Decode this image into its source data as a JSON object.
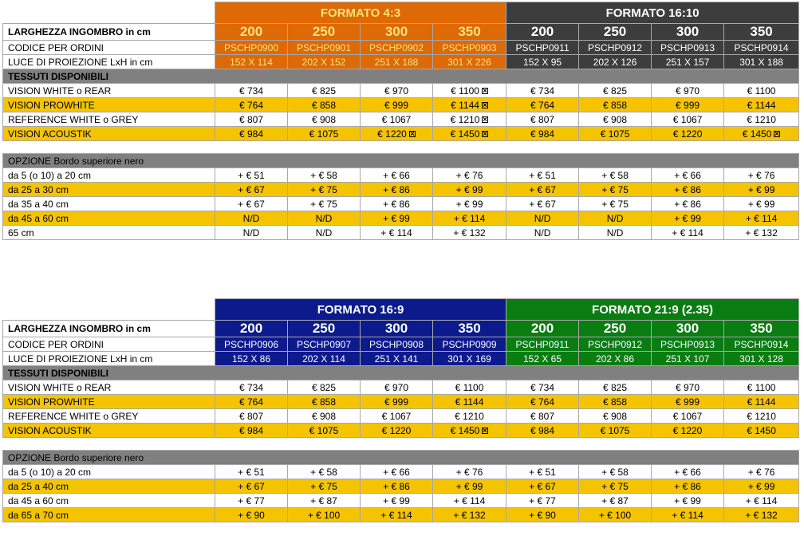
{
  "tables": [
    {
      "formats": [
        {
          "label": "FORMATO 4:3",
          "color": "#dd6a06",
          "sizes": [
            "200",
            "250",
            "300",
            "350"
          ],
          "codes": [
            "PSCHP0900",
            "PSCHP0901",
            "PSCHP0902",
            "PSCHP0903"
          ],
          "luce": [
            "152 X 114",
            "202 X 152",
            "251 X 188",
            "301 X 226"
          ]
        },
        {
          "label": "FORMATO 16:10",
          "color": "#3d3d3d",
          "sizes": [
            "200",
            "250",
            "300",
            "350"
          ],
          "codes": [
            "PSCHP0911",
            "PSCHP0912",
            "PSCHP0913",
            "PSCHP0914"
          ],
          "luce": [
            "152 X 95",
            "202 X 126",
            "251 X 157",
            "301 X 188"
          ]
        }
      ],
      "labels": {
        "width": "LARGHEZZA INGOMBRO in cm",
        "codes": "CODICE PER ORDINI",
        "luce": "LUCE DI PROIEZIONE LxH in cm",
        "fabrics_header": "TESSUTI DISPONIBILI",
        "options_header": "OPZIONE Bordo superiore nero"
      },
      "fabrics": [
        {
          "name": "VISION WHITE o REAR",
          "highlight": false,
          "prices": [
            "€ 734",
            "€ 825",
            "€ 970",
            "€ 1100",
            "€ 734",
            "€ 825",
            "€ 970",
            "€ 1100"
          ],
          "marks": [
            false,
            false,
            false,
            true,
            false,
            false,
            false,
            false
          ]
        },
        {
          "name": "VISION PROWHITE",
          "highlight": true,
          "prices": [
            "€ 764",
            "€ 858",
            "€ 999",
            "€ 1144",
            "€ 764",
            "€ 858",
            "€ 999",
            "€ 1144"
          ],
          "marks": [
            false,
            false,
            false,
            true,
            false,
            false,
            false,
            false
          ]
        },
        {
          "name": "REFERENCE WHITE o GREY",
          "highlight": false,
          "prices": [
            "€ 807",
            "€ 908",
            "€ 1067",
            "€ 1210",
            "€ 807",
            "€ 908",
            "€ 1067",
            "€ 1210"
          ],
          "marks": [
            false,
            false,
            false,
            true,
            false,
            false,
            false,
            false
          ]
        },
        {
          "name": "VISION ACOUSTIK",
          "highlight": true,
          "prices": [
            "€ 984",
            "€ 1075",
            "€ 1220",
            "€ 1450",
            "€ 984",
            "€ 1075",
            "€ 1220",
            "€ 1450"
          ],
          "marks": [
            false,
            false,
            true,
            true,
            false,
            false,
            false,
            true
          ]
        }
      ],
      "options": [
        {
          "name": "da 5 (o 10) a 20 cm",
          "highlight": false,
          "prices": [
            "+ € 51",
            "+ € 58",
            "+ € 66",
            "+ € 76",
            "+ € 51",
            "+ € 58",
            "+ € 66",
            "+ € 76"
          ]
        },
        {
          "name": "da 25 a 30 cm",
          "highlight": true,
          "prices": [
            "+ € 67",
            "+ € 75",
            "+ € 86",
            "+ € 99",
            "+ € 67",
            "+ € 75",
            "+ € 86",
            "+ € 99"
          ]
        },
        {
          "name": "da 35 a 40 cm",
          "highlight": false,
          "prices": [
            "+ € 67",
            "+ € 75",
            "+ € 86",
            "+ € 99",
            "+ € 67",
            "+ € 75",
            "+ € 86",
            "+ € 99"
          ]
        },
        {
          "name": "da 45 a 60 cm",
          "highlight": true,
          "prices": [
            "N/D",
            "N/D",
            "+ € 99",
            "+ € 114",
            "N/D",
            "N/D",
            "+ € 99",
            "+ € 114"
          ]
        },
        {
          "name": "65 cm",
          "highlight": false,
          "prices": [
            "N/D",
            "N/D",
            "+ € 114",
            "+ € 132",
            "N/D",
            "N/D",
            "+ € 114",
            "+ € 132"
          ]
        }
      ]
    },
    {
      "formats": [
        {
          "label": "FORMATO 16:9",
          "color": "#0c1a8c",
          "sizes": [
            "200",
            "250",
            "300",
            "350"
          ],
          "codes": [
            "PSCHP0906",
            "PSCHP0907",
            "PSCHP0908",
            "PSCHP0909"
          ],
          "luce": [
            "152 X 86",
            "202 X 114",
            "251 X 141",
            "301 X 169"
          ]
        },
        {
          "label": "FORMATO 21:9 (2.35)",
          "color": "#0a7c12",
          "sizes": [
            "200",
            "250",
            "300",
            "350"
          ],
          "codes": [
            "PSCHP0911",
            "PSCHP0912",
            "PSCHP0913",
            "PSCHP0914"
          ],
          "luce": [
            "152 X 65",
            "202 X 86",
            "251 X 107",
            "301 X 128"
          ]
        }
      ],
      "labels": {
        "width": "LARGHEZZA INGOMBRO in cm",
        "codes": "CODICE PER ORDINI",
        "luce": "LUCE DI PROIEZIONE LxH in cm",
        "fabrics_header": "TESSUTI DISPONIBILI",
        "options_header": "OPZIONE Bordo superiore nero"
      },
      "fabrics": [
        {
          "name": "VISION WHITE o REAR",
          "highlight": false,
          "prices": [
            "€ 734",
            "€ 825",
            "€ 970",
            "€ 1100",
            "€ 734",
            "€ 825",
            "€ 970",
            "€ 1100"
          ],
          "marks": [
            false,
            false,
            false,
            false,
            false,
            false,
            false,
            false
          ]
        },
        {
          "name": "VISION PROWHITE",
          "highlight": true,
          "prices": [
            "€ 764",
            "€ 858",
            "€ 999",
            "€ 1144",
            "€ 764",
            "€ 858",
            "€ 999",
            "€ 1144"
          ],
          "marks": [
            false,
            false,
            false,
            false,
            false,
            false,
            false,
            false
          ]
        },
        {
          "name": "REFERENCE WHITE o GREY",
          "highlight": false,
          "prices": [
            "€ 807",
            "€ 908",
            "€ 1067",
            "€ 1210",
            "€ 807",
            "€ 908",
            "€ 1067",
            "€ 1210"
          ],
          "marks": [
            false,
            false,
            false,
            false,
            false,
            false,
            false,
            false
          ]
        },
        {
          "name": "VISION ACOUSTIK",
          "highlight": true,
          "prices": [
            "€ 984",
            "€ 1075",
            "€ 1220",
            "€ 1450",
            "€ 984",
            "€ 1075",
            "€ 1220",
            "€ 1450"
          ],
          "marks": [
            false,
            false,
            false,
            true,
            false,
            false,
            false,
            false
          ]
        }
      ],
      "options": [
        {
          "name": "da 5 (o 10) a 20 cm",
          "highlight": false,
          "prices": [
            "+ € 51",
            "+ € 58",
            "+ € 66",
            "+ € 76",
            "+ € 51",
            "+ € 58",
            "+ € 66",
            "+ € 76"
          ]
        },
        {
          "name": "da 25 a 40 cm",
          "highlight": true,
          "prices": [
            "+ € 67",
            "+ € 75",
            "+ € 86",
            "+ € 99",
            "+ € 67",
            "+ € 75",
            "+ € 86",
            "+ € 99"
          ]
        },
        {
          "name": "da 45 a 60 cm",
          "highlight": false,
          "prices": [
            "+ € 77",
            "+ € 87",
            "+ € 99",
            "+ € 114",
            "+ € 77",
            "+ € 87",
            "+ € 99",
            "+ € 114"
          ]
        },
        {
          "name": "da 65 a 70 cm",
          "highlight": true,
          "prices": [
            "+ € 90",
            "+ € 100",
            "+ € 114",
            "+ € 132",
            "+ € 90",
            "+ € 100",
            "+ € 114",
            "+ € 132"
          ]
        }
      ]
    }
  ]
}
